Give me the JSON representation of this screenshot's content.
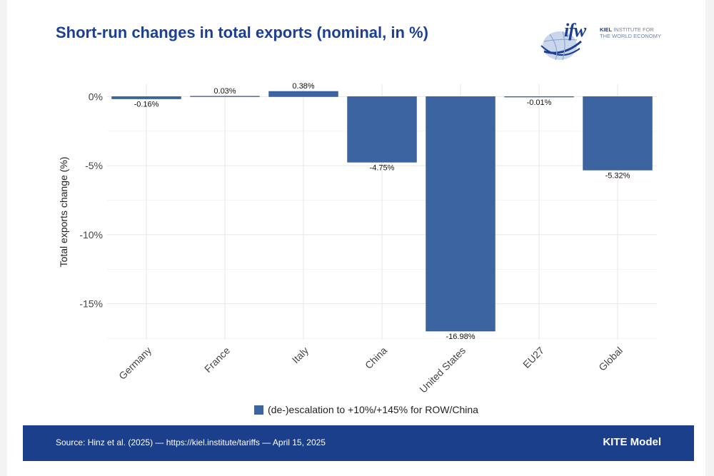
{
  "header": {
    "title": "Short-run changes in total exports (nominal, in %)",
    "logo": {
      "mark": "ifw",
      "line1_bold": "KIEL",
      "line1_rest": "INSTITUTE FOR",
      "line2": "THE WORLD ECONOMY"
    }
  },
  "footer": {
    "source": "Source: Hinz et al. (2025) — https://kiel.institute/tariffs — April 15, 2025",
    "model": "KITE Model"
  },
  "colors": {
    "bar": "#3b64a1",
    "bar_stroke": "#2a4f8c",
    "title": "#1c3f94",
    "footer_bg": "#1c3f8c",
    "grid": "#e6e6e6"
  },
  "chart_data": {
    "type": "bar",
    "title": "Short-run changes in total exports (nominal, in %)",
    "xlabel": "",
    "ylabel": "Total exports change (%)",
    "ylim": [
      -17.6,
      0.9
    ],
    "yticks": [
      0,
      -5,
      -10,
      -15
    ],
    "ytick_labels": [
      "0%",
      "-5%",
      "-10%",
      "-15%"
    ],
    "grid": true,
    "categories": [
      "Germany",
      "France",
      "Italy",
      "China",
      "United States",
      "EU27",
      "Global"
    ],
    "series": [
      {
        "name": "(de-)escalation to +10%/+145% for ROW/China",
        "values": [
          -0.16,
          0.03,
          0.38,
          -4.75,
          -16.98,
          -0.01,
          -5.32
        ],
        "labels": [
          "-0.16%",
          "0.03%",
          "0.38%",
          "-4.75%",
          "-16.98%",
          "-0.01%",
          "-5.32%"
        ]
      }
    ],
    "legend": "bottom-center"
  }
}
